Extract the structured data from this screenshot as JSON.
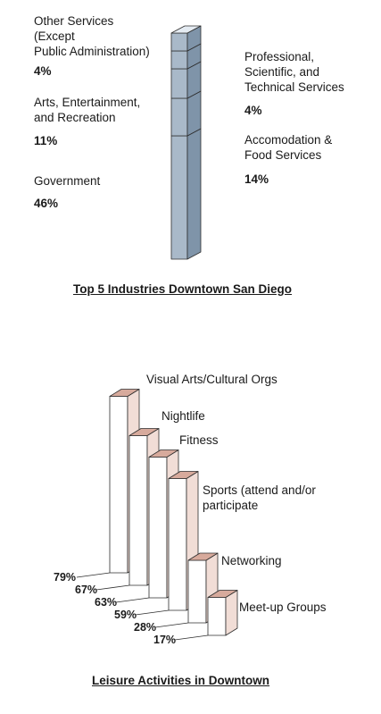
{
  "chart_data": [
    {
      "type": "bar",
      "title": "Top 5 Industries Downtown San Diego",
      "categories": [
        "Government",
        "Accomodation & Food Services",
        "Arts, Entertainment, and Recreation",
        "Professional, Scientific, and Technical Services",
        "Other Services (Except Public Administration)"
      ],
      "values": [
        46,
        14,
        11,
        4,
        4
      ],
      "unit": "%",
      "labels": {
        "other": "Other Services\n(Except\nPublic Administration)",
        "other_pct": "4%",
        "professional": "Professional,\nScientific, and\nTechnical Services",
        "professional_pct": "4%",
        "arts": "Arts, Entertainment,\nand Recreation",
        "arts_pct": "11%",
        "accomodation": "Accomodation &\nFood Services",
        "accomodation_pct": "14%",
        "government": "Government",
        "government_pct": "46%"
      },
      "colors": {
        "front": "#a9b9c9",
        "side": "#7f94a9",
        "top": "#e4ebf2"
      }
    },
    {
      "type": "bar",
      "title": "Leisure Activities in Downtown",
      "categories": [
        "Visual Arts/Cultural Orgs",
        "Nightlife",
        "Fitness",
        "Sports (attend and/or participate",
        "Networking",
        "Meet-up Groups"
      ],
      "values": [
        79,
        67,
        63,
        59,
        28,
        17
      ],
      "value_labels": [
        "79%",
        "67%",
        "63%",
        "59%",
        "28%",
        "17%"
      ],
      "colors": {
        "front": "#ffffff",
        "side": "#f1ddd6",
        "top": "#d7aa9c"
      }
    }
  ]
}
